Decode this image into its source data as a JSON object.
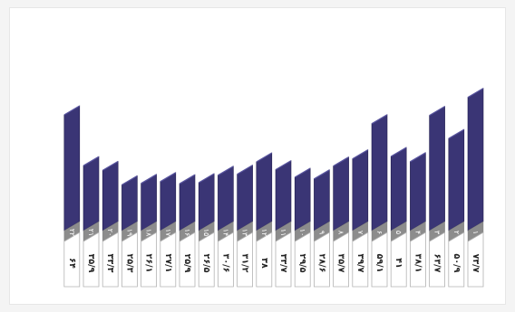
{
  "chart_data": {
    "type": "bar",
    "style": "3d-parallelogram",
    "colors": {
      "bar_front": "#3a3575",
      "bar_top": "#5a56a0",
      "bar_edge": "#24204f",
      "label_box_border": "#b3b3b3",
      "number_strip": "#8c8c8c",
      "number_text": "#ffffff",
      "value_text": "#222222"
    },
    "grid": false,
    "legend": "none",
    "title": "",
    "xlabel": "",
    "ylabel": "",
    "ylim": [
      0,
      80
    ],
    "direction": "rtl",
    "categories": [
      "۱",
      "۲",
      "۳",
      "۴",
      "۵",
      "۶",
      "۷",
      "۸",
      "۹",
      "۱۰",
      "۱۱",
      "۱۲",
      "۱۳",
      "۱۴",
      "۱۵",
      "۱۶",
      "۱۷",
      "۱۸",
      "۱۹",
      "۲۰",
      "۲۱",
      "۲۲"
    ],
    "value_labels": [
      "۷۳/۷",
      "۵۰/۹",
      "۶۳/۷",
      "۳۸/۱",
      "۴۱",
      "۵۹/۱",
      "۳۹/۷",
      "۳۵/۷",
      "۲۸/۶",
      "۲۹/۵",
      "۳۳/۷",
      "۳۸",
      "۳۱/۲",
      "۳۰/۶",
      "۲۶/۵",
      "۲۵/۹",
      "۲۷/۱",
      "۲۶/۱",
      "۲۵/۳",
      "۳۳/۳",
      "۳۵/۹",
      "۶۴"
    ],
    "values": [
      73.7,
      50.9,
      63.7,
      38.1,
      41,
      59.1,
      39.7,
      35.7,
      28.6,
      29.5,
      33.7,
      38,
      31.2,
      30.6,
      26.5,
      25.9,
      27.1,
      26.1,
      25.3,
      33.3,
      35.9,
      64
    ]
  }
}
